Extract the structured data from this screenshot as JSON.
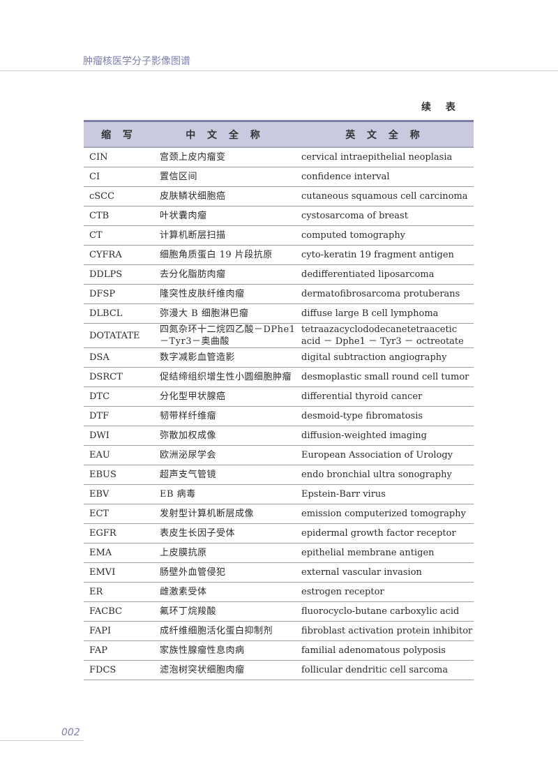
{
  "header": {
    "running_title": "肿瘤核医学分子影像图谱",
    "continued_label": "续 表"
  },
  "table": {
    "columns": [
      "缩 写",
      "中 文 全 称",
      "英 文 全 称"
    ],
    "rows": [
      [
        "CIN",
        "宫颈上皮内瘤变",
        "cervical intraepithelial neoplasia"
      ],
      [
        "CI",
        "置信区间",
        "confidence interval"
      ],
      [
        "cSCC",
        "皮肤鳞状细胞癌",
        "cutaneous squamous cell carcinoma"
      ],
      [
        "CTB",
        "叶状囊肉瘤",
        "cystosarcoma of breast"
      ],
      [
        "CT",
        "计算机断层扫描",
        "computed tomography"
      ],
      [
        "CYFRA",
        "细胞角质蛋白 19 片段抗原",
        "cyto-keratin 19 fragment antigen"
      ],
      [
        "DDLPS",
        "去分化脂肪肉瘤",
        "dedifferentiated liposarcoma"
      ],
      [
        "DFSP",
        "隆突性皮肤纤维肉瘤",
        "dermatofibrosarcoma protuberans"
      ],
      [
        "DLBCL",
        "弥漫大 B 细胞淋巴瘤",
        "diffuse large B cell lymphoma"
      ],
      [
        "DOTATATE",
        "四氮杂环十二烷四乙酸－DPhe1－Tyr3－奥曲酸",
        "tetraazacyclododecanetetraacetic acid － Dphe1 － Tyr3 － octreotate"
      ],
      [
        "DSA",
        "数字减影血管造影",
        "digital subtraction angiography"
      ],
      [
        "DSRCT",
        "促结缔组织增生性小圆细胞肿瘤",
        "desmoplastic small round cell tumor"
      ],
      [
        "DTC",
        "分化型甲状腺癌",
        "differential thyroid cancer"
      ],
      [
        "DTF",
        "韧带样纤维瘤",
        "desmoid-type fibromatosis"
      ],
      [
        "DWI",
        "弥散加权成像",
        "diffusion-weighted imaging"
      ],
      [
        "EAU",
        "欧洲泌尿学会",
        "European Association of Urology"
      ],
      [
        "EBUS",
        "超声支气管镜",
        "endo bronchial ultra sonography"
      ],
      [
        "EBV",
        "EB 病毒",
        "Epstein-Barr virus"
      ],
      [
        "ECT",
        "发射型计算机断层成像",
        "emission computerized tomography"
      ],
      [
        "EGFR",
        "表皮生长因子受体",
        "epidermal growth factor receptor"
      ],
      [
        "EMA",
        "上皮膜抗原",
        "epithelial membrane antigen"
      ],
      [
        "EMVI",
        "肠壁外血管侵犯",
        "external vascular invasion"
      ],
      [
        "ER",
        "雌激素受体",
        "estrogen receptor"
      ],
      [
        "FACBC",
        "氟环丁烷羧酸",
        "fluorocyclo-butane carboxylic acid"
      ],
      [
        "FAPI",
        "成纤维细胞活化蛋白抑制剂",
        "fibroblast activation protein inhibitor"
      ],
      [
        "FAP",
        "家族性腺瘤性息肉病",
        "familial adenomatous polyposis"
      ],
      [
        "FDCS",
        "滤泡树突状细胞肉瘤",
        "follicular dendritic cell sarcoma"
      ]
    ]
  },
  "footer": {
    "page_number": "002"
  }
}
